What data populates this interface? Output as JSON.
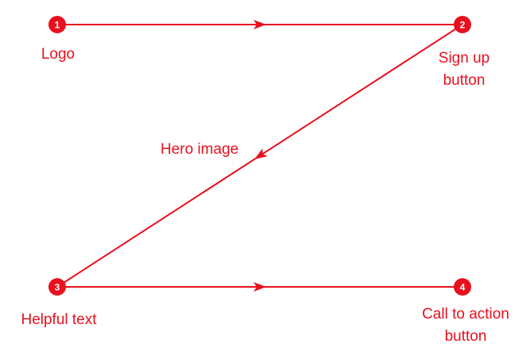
{
  "colors": {
    "accent": "#e8101e",
    "background": "#ffffff"
  },
  "nodes": [
    {
      "number": "1",
      "label_lines": [
        "Logo"
      ]
    },
    {
      "number": "2",
      "label_lines": [
        "Sign up",
        "button"
      ]
    },
    {
      "number": "3",
      "label_lines": [
        "Helpful text"
      ]
    },
    {
      "number": "4",
      "label_lines": [
        "Call to action",
        "button"
      ]
    }
  ],
  "mid_label": "Hero image",
  "edges": [
    {
      "from": 0,
      "to": 1
    },
    {
      "from": 1,
      "to": 2
    },
    {
      "from": 2,
      "to": 3
    }
  ]
}
